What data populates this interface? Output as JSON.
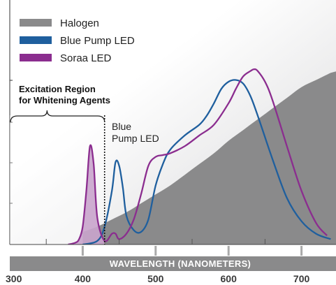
{
  "chart_data": {
    "type": "line",
    "xlabel": "WAVELENGTH (NANOMETERS)",
    "xlim": [
      300,
      740
    ],
    "ylim": [
      0,
      100
    ],
    "x_ticks": [
      300,
      400,
      500,
      600,
      700
    ],
    "grid": false,
    "legend_position": "top-left",
    "series": [
      {
        "name": "Halogen",
        "color": "#8a8a8b",
        "style": "area",
        "x": [
          400,
          420,
          440,
          460,
          480,
          500,
          520,
          540,
          560,
          580,
          600,
          620,
          640,
          660,
          680,
          700,
          720,
          740
        ],
        "y": [
          7,
          10,
          14,
          18,
          23,
          28,
          33,
          39,
          45,
          51,
          58,
          64,
          70,
          76,
          82,
          88,
          92,
          96
        ]
      },
      {
        "name": "Blue Pump LED",
        "color": "#1f5f9e",
        "style": "line",
        "x": [
          400,
          420,
          430,
          440,
          445,
          450,
          455,
          460,
          470,
          480,
          490,
          500,
          510,
          520,
          540,
          560,
          570,
          580,
          590,
          600,
          610,
          620,
          630,
          640,
          660,
          680,
          700,
          720,
          740
        ],
        "y": [
          0,
          2,
          10,
          30,
          46,
          44,
          32,
          16,
          8,
          7,
          14,
          33,
          45,
          53,
          61,
          67,
          72,
          79,
          87,
          91,
          92,
          90,
          83,
          72,
          48,
          26,
          13,
          6,
          3
        ]
      },
      {
        "name": "Soraa LED",
        "color": "#8b2d8f",
        "style": "line",
        "x": [
          380,
          390,
          395,
          400,
          405,
          410,
          415,
          420,
          430,
          440,
          445,
          450,
          460,
          470,
          480,
          490,
          500,
          510,
          520,
          540,
          560,
          580,
          600,
          610,
          620,
          630,
          635,
          640,
          650,
          660,
          680,
          700,
          720,
          735
        ],
        "y": [
          0,
          1,
          3,
          10,
          30,
          55,
          45,
          15,
          2,
          6,
          6,
          3,
          6,
          14,
          28,
          44,
          49,
          50,
          51,
          55,
          61,
          67,
          79,
          87,
          94,
          97,
          98,
          97,
          91,
          81,
          55,
          30,
          12,
          5
        ]
      }
    ],
    "annotations": [
      {
        "text": [
          "Excitation Region",
          "for Whitening Agents"
        ],
        "range": [
          300,
          430
        ]
      },
      {
        "text": [
          "Blue",
          "Pump LED"
        ],
        "x": 430
      }
    ]
  }
}
